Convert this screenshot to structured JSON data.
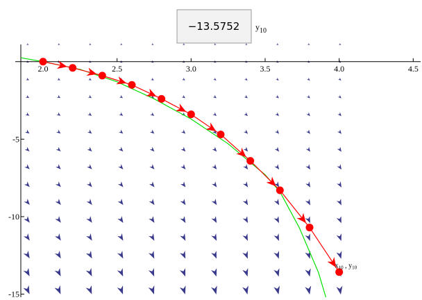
{
  "readout": {
    "value": "−13.5752",
    "label_base": "y",
    "label_sub": "10"
  },
  "chart_data": {
    "type": "line",
    "annotation": {
      "x_base": "x",
      "x_sub": "10",
      "sep": " , ",
      "y_base": "y",
      "y_sub": "10"
    },
    "xlim": [
      1.85,
      4.55
    ],
    "ylim": [
      -15.2,
      1.2
    ],
    "xticks": [
      {
        "value": 2.0,
        "label": "2.0"
      },
      {
        "value": 2.5,
        "label": "2.5"
      },
      {
        "value": 3.0,
        "label": "3.0"
      },
      {
        "value": 3.5,
        "label": "3.5"
      },
      {
        "value": 4.0,
        "label": "4.0"
      },
      {
        "value": 4.5,
        "label": "4.5"
      }
    ],
    "yticks": [
      -5,
      -10,
      -15
    ],
    "series": [
      {
        "color": "#00e000",
        "x": [
          1.85,
          2.0,
          2.25,
          2.5,
          2.75,
          3.0,
          3.25,
          3.5,
          3.6,
          3.73,
          3.86,
          3.91
        ],
        "values": [
          0.25,
          0,
          -0.5,
          -1.3,
          -2.4,
          -3.7,
          -5.3,
          -7.3,
          -8.4,
          -10.7,
          -13.6,
          -15.2
        ],
        "markers": false
      },
      {
        "color": "#ff0000",
        "x": [
          2.0,
          2.2,
          2.4,
          2.6,
          2.8,
          3.0,
          3.2,
          3.4,
          3.6,
          3.8,
          4.0
        ],
        "values": [
          0,
          -0.4,
          -0.9,
          -1.5,
          -2.4,
          -3.4,
          -4.7,
          -6.4,
          -8.3,
          -10.7,
          -13.5752
        ],
        "markers": true
      }
    ]
  }
}
